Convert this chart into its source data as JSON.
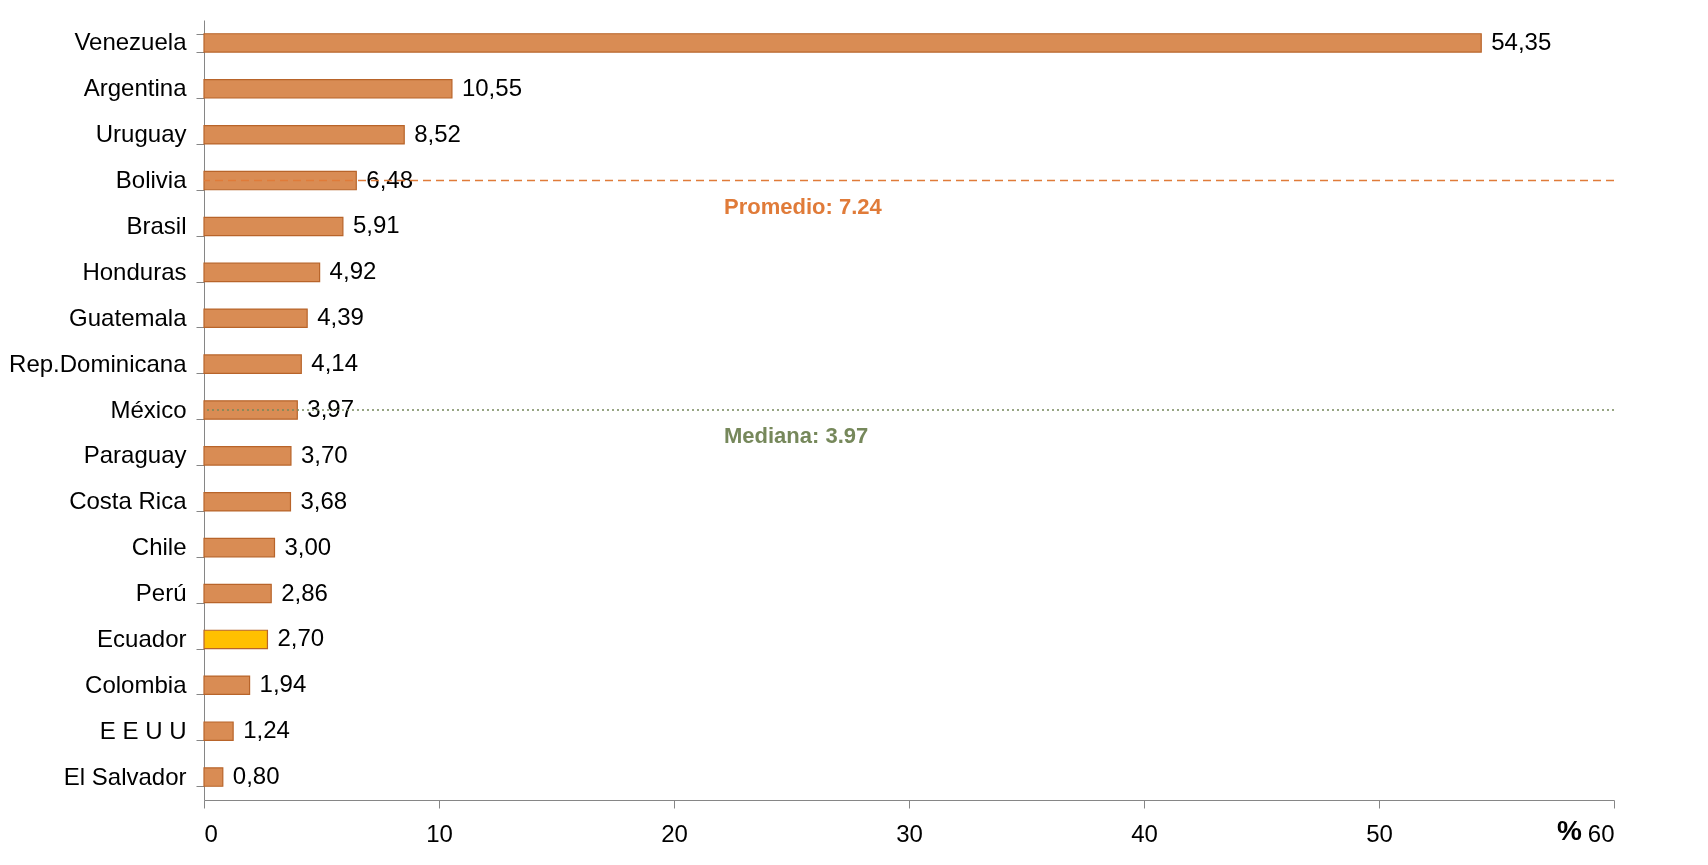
{
  "chart_data": {
    "type": "bar",
    "orientation": "horizontal",
    "xlabel": "%",
    "categories": [
      "Venezuela",
      "Argentina",
      "Uruguay",
      "Bolivia",
      "Brasil",
      "Honduras",
      "Guatemala",
      "Rep.Dominicana",
      "México",
      "Paraguay",
      "Costa Rica",
      "Chile",
      "Perú",
      "Ecuador",
      "Colombia",
      "E E U U",
      "El Salvador"
    ],
    "values": [
      54.35,
      10.55,
      8.52,
      6.48,
      5.91,
      4.92,
      4.39,
      4.14,
      3.97,
      3.7,
      3.68,
      3.0,
      2.86,
      2.7,
      1.94,
      1.24,
      0.8
    ],
    "value_labels": [
      "54,35",
      "10,55",
      "8,52",
      "6,48",
      "5,91",
      "4,92",
      "4,39",
      "4,14",
      "3,97",
      "3,70",
      "3,68",
      "3,00",
      "2,86",
      "2,70",
      "1,94",
      "1,24",
      "0,80"
    ],
    "colors": [
      "#d98c54",
      "#d98c54",
      "#d98c54",
      "#d98c54",
      "#d98c54",
      "#d98c54",
      "#d98c54",
      "#d98c54",
      "#d98c54",
      "#d98c54",
      "#d98c54",
      "#d98c54",
      "#d98c54",
      "#ffc000",
      "#d98c54",
      "#d98c54",
      "#d98c54"
    ],
    "xlim": [
      0,
      60
    ],
    "xticks": [
      0,
      10,
      20,
      30,
      40,
      50,
      60
    ],
    "grid": false,
    "ref_lines": [
      {
        "axis": "y",
        "value": "Bolivia",
        "label": "Promedio: 7.24",
        "color": "#e07b39",
        "line_style": "dashed"
      },
      {
        "axis": "y",
        "value": "México",
        "label": "Mediana: 3.97",
        "color": "#76885b",
        "line_style": "dotted"
      }
    ]
  }
}
